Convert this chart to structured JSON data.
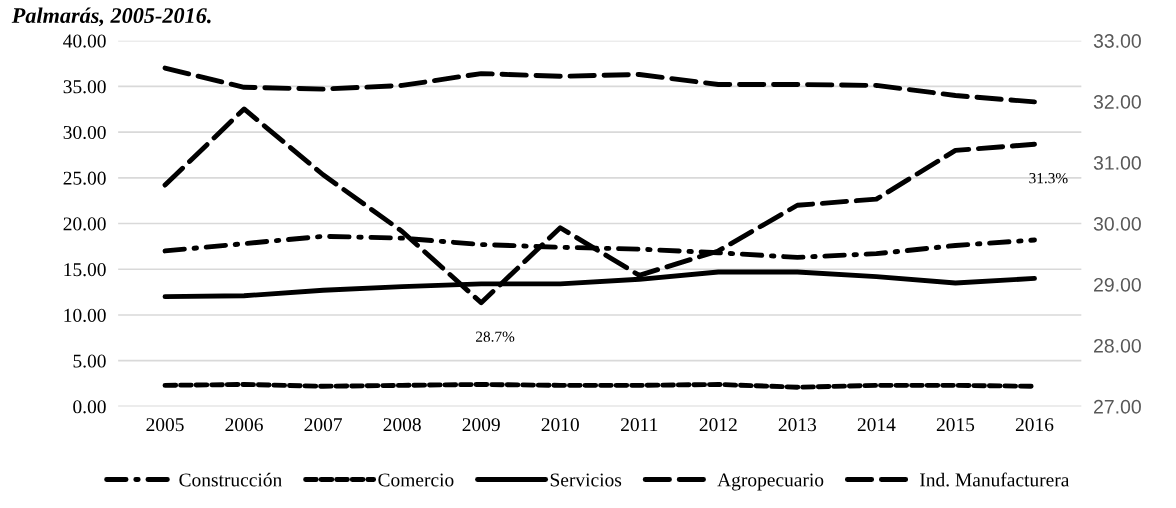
{
  "chart_data": {
    "type": "line",
    "title": "Palmarás, 2005-2016.",
    "categories": [
      "2005",
      "2006",
      "2007",
      "2008",
      "2009",
      "2010",
      "2011",
      "2012",
      "2013",
      "2014",
      "2015",
      "2016"
    ],
    "series": [
      {
        "name": "Construcción",
        "color": "#000000",
        "line_style": "dashdot",
        "values": [
          17.0,
          17.8,
          18.6,
          18.4,
          17.7,
          17.4,
          17.2,
          16.8,
          16.3,
          16.7,
          17.6,
          18.2
        ]
      },
      {
        "name": "Comercio",
        "color": "#000000",
        "line_style": "dotted",
        "values": [
          2.3,
          2.4,
          2.2,
          2.3,
          2.4,
          2.3,
          2.3,
          2.4,
          2.1,
          2.3,
          2.3,
          2.2
        ]
      },
      {
        "name": "Servicios",
        "color": "#000000",
        "line_style": "solid",
        "values": [
          12.0,
          12.1,
          12.7,
          13.1,
          13.4,
          13.4,
          13.9,
          14.7,
          14.7,
          14.2,
          13.5,
          14.0
        ]
      },
      {
        "name": "Agropecuario",
        "color": "#000000",
        "line_style": "dashed",
        "values": [
          37.0,
          34.9,
          34.7,
          35.1,
          36.4,
          36.1,
          36.3,
          35.2,
          35.2,
          35.1,
          34.0,
          33.3
        ]
      },
      {
        "name": "Ind. Manufacturera",
        "color": "#000000",
        "line_style": "dashed",
        "axis": "y2",
        "values": [
          30.63,
          31.88,
          30.8,
          29.87,
          28.7,
          29.93,
          29.15,
          29.55,
          30.3,
          30.4,
          31.2,
          31.3
        ]
      }
    ],
    "ylim": [
      0,
      40
    ],
    "yticks": [
      {
        "value": 0,
        "label": "0.00"
      },
      {
        "value": 5,
        "label": "5.00"
      },
      {
        "value": 10,
        "label": "10.00"
      },
      {
        "value": 15,
        "label": "15.00"
      },
      {
        "value": 20,
        "label": "20.00"
      },
      {
        "value": 25,
        "label": "25.00"
      },
      {
        "value": 30,
        "label": "30.00"
      },
      {
        "value": 35,
        "label": "35.00"
      },
      {
        "value": 40,
        "label": "40.00"
      }
    ],
    "y2lim": [
      27,
      33
    ],
    "y2ticks": [
      {
        "value": 27,
        "label": "27.00"
      },
      {
        "value": 28,
        "label": "28.00"
      },
      {
        "value": 29,
        "label": "29.00"
      },
      {
        "value": 30,
        "label": "30.00"
      },
      {
        "value": 31,
        "label": "31.00"
      },
      {
        "value": 32,
        "label": "32.00"
      },
      {
        "value": 33,
        "label": "33.00"
      }
    ],
    "grid": "y",
    "legend": "bottom",
    "annotations": [
      "28.7%",
      "31.3%"
    ]
  }
}
